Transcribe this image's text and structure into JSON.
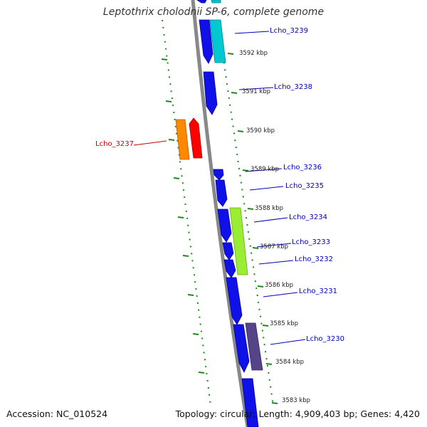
{
  "title": "Leptothrix cholodnii SP-6, complete genome",
  "footer": {
    "accession": "Accession: NC_010524",
    "summary": "Topology: circular; Length: 4,909,403 bp; Genes: 4,420"
  },
  "colors": {
    "backbone": "#808080",
    "forward_gene": "#0000ee",
    "gc_dots": "#1a8a1a",
    "label_blue": "#0000bb",
    "label_red": "#cc0000"
  },
  "kbp_ticks": [
    "3592 kbp",
    "3591 kbp",
    "3590 kbp",
    "3589 kbp",
    "3588 kbp",
    "3587 kbp",
    "3586 kbp",
    "3585 kbp",
    "3584 kbp",
    "3583 kbp"
  ],
  "gene_labels": [
    {
      "text": "Lcho_3239",
      "color": "#0000bb"
    },
    {
      "text": "Lcho_3238",
      "color": "#0000bb"
    },
    {
      "text": "Lcho_3237",
      "color": "#cc0000"
    },
    {
      "text": "Lcho_3236",
      "color": "#0000bb"
    },
    {
      "text": "Lcho_3235",
      "color": "#0000bb"
    },
    {
      "text": "Lcho_3234",
      "color": "#0000bb"
    },
    {
      "text": "Lcho_3233",
      "color": "#0000bb"
    },
    {
      "text": "Lcho_3232",
      "color": "#0000bb"
    },
    {
      "text": "Lcho_3231",
      "color": "#0000bb"
    },
    {
      "text": "Lcho_3230",
      "color": "#0000bb"
    }
  ],
  "cog_colors": [
    "#00c8d0",
    "#ff8800",
    "#ff0000",
    "#99ee33",
    "#554488"
  ]
}
